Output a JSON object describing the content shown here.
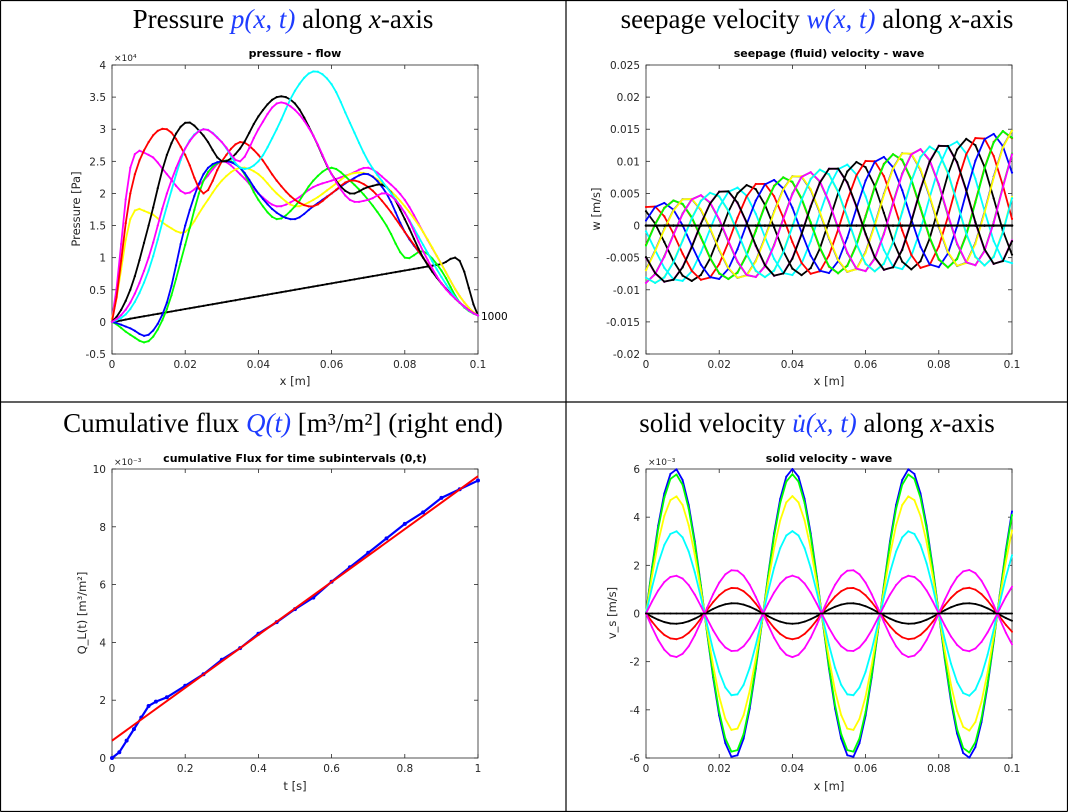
{
  "panels": [
    {
      "title_prefix": "Pressure ",
      "title_math": "p(x, t)",
      "title_suffix_a": " along ",
      "title_var": "x",
      "title_suffix_b": "-axis"
    },
    {
      "title_prefix": "seepage velocity ",
      "title_math": "w(x, t)",
      "title_suffix_a": " along ",
      "title_var": "x",
      "title_suffix_b": "-axis"
    },
    {
      "title_prefix": "Cumulative flux ",
      "title_math": "Q(t)",
      "title_suffix_a": " [m³/m²] (right end)",
      "title_var": "",
      "title_suffix_b": ""
    },
    {
      "title_prefix": "solid velocity ",
      "title_math": "u̇(x, t)",
      "title_suffix_a": " along ",
      "title_var": "x",
      "title_suffix_b": "-axis"
    }
  ],
  "chart_data": [
    {
      "type": "line",
      "title": "pressure - flow",
      "xlabel": "x [m]",
      "ylabel": "Pressure [Pa]",
      "exponent": "×10⁴",
      "xlim": [
        0,
        0.1
      ],
      "ylim": [
        -0.5,
        4
      ],
      "xticks": [
        "0",
        "0.02",
        "0.04",
        "0.06",
        "0.08",
        "0.1"
      ],
      "yticks": [
        "-0.5",
        "0",
        "0.5",
        "1",
        "1.5",
        "2",
        "2.5",
        "3",
        "3.5",
        "4"
      ],
      "annotation": "1000",
      "x": [
        0,
        0.005,
        0.01,
        0.015,
        0.02,
        0.025,
        0.03,
        0.035,
        0.04,
        0.045,
        0.05,
        0.055,
        0.06,
        0.065,
        0.07,
        0.075,
        0.08,
        0.085,
        0.09,
        0.095,
        0.1
      ],
      "series": [
        {
          "color": "#000000",
          "values": [
            0,
            0.05,
            0.1,
            0.15,
            0.2,
            0.25,
            0.3,
            0.35,
            0.4,
            0.45,
            0.5,
            0.55,
            0.6,
            0.65,
            0.7,
            0.75,
            0.8,
            0.85,
            0.9,
            0.95,
            0.1
          ]
        },
        {
          "color": "#ff00ff",
          "values": [
            0.05,
            2.4,
            2.6,
            2.3,
            2.0,
            2.2,
            2.5,
            2.3,
            2.0,
            1.8,
            1.9,
            2.1,
            2.2,
            2.3,
            2.4,
            2.2,
            1.9,
            1.4,
            0.9,
            0.4,
            0.1
          ]
        },
        {
          "color": "#ffff00",
          "values": [
            0.05,
            1.6,
            1.7,
            1.5,
            1.4,
            1.8,
            2.2,
            2.4,
            2.3,
            2.0,
            1.8,
            1.9,
            2.1,
            2.3,
            2.3,
            2.1,
            1.8,
            1.4,
            0.9,
            0.4,
            0.1
          ]
        },
        {
          "color": "#00ff00",
          "values": [
            0,
            -0.2,
            -0.3,
            0.2,
            1.2,
            2.2,
            2.5,
            2.4,
            1.9,
            1.6,
            1.8,
            2.2,
            2.4,
            2.2,
            1.9,
            1.5,
            1.0,
            1.1,
            0.8,
            0.3,
            0.1
          ]
        },
        {
          "color": "#0000ff",
          "values": [
            0,
            -0.1,
            -0.2,
            0.3,
            1.5,
            2.3,
            2.5,
            2.4,
            2.0,
            1.7,
            1.6,
            1.8,
            2.0,
            2.2,
            2.3,
            2.0,
            1.4,
            1.0,
            0.6,
            0.3,
            0.1
          ]
        },
        {
          "color": "#ff0000",
          "values": [
            0,
            2.0,
            2.8,
            3.0,
            2.6,
            2.0,
            2.5,
            2.8,
            2.6,
            2.2,
            1.9,
            1.8,
            2.0,
            2.2,
            2.1,
            1.8,
            1.4,
            1.0,
            0.6,
            0.3,
            0.1
          ]
        },
        {
          "color": "#000000",
          "values": [
            0,
            0.5,
            1.5,
            2.6,
            3.1,
            2.9,
            2.5,
            2.7,
            3.2,
            3.5,
            3.4,
            2.9,
            2.3,
            2.0,
            2.1,
            2.1,
            1.6,
            1.0,
            0.6,
            0.3,
            0.1
          ]
        },
        {
          "color": "#00ffff",
          "values": [
            0,
            0.2,
            0.8,
            1.8,
            2.7,
            3.0,
            2.8,
            2.4,
            2.5,
            3.0,
            3.6,
            3.9,
            3.7,
            3.1,
            2.5,
            2.1,
            1.7,
            1.2,
            0.7,
            0.3,
            0.1
          ]
        },
        {
          "color": "#ff00ff",
          "values": [
            0,
            0.3,
            1.0,
            2.0,
            2.7,
            3.0,
            2.8,
            2.5,
            3.0,
            3.4,
            3.3,
            2.9,
            2.3,
            1.9,
            1.9,
            2.0,
            1.7,
            1.1,
            0.6,
            0.3,
            0.1
          ]
        }
      ]
    },
    {
      "type": "line",
      "title": "seepage (fluid) velocity - wave",
      "xlabel": "x [m]",
      "ylabel": "w [m/s]",
      "xlim": [
        0,
        0.1
      ],
      "ylim": [
        -0.02,
        0.025
      ],
      "xticks": [
        "0",
        "0.02",
        "0.04",
        "0.06",
        "0.08",
        "0.1"
      ],
      "yticks": [
        "-0.02",
        "-0.015",
        "-0.01",
        "-0.005",
        "0",
        "0.005",
        "0.01",
        "0.015",
        "0.02",
        "0.025"
      ],
      "phases": [
        0,
        0.7,
        1.4,
        2.1,
        2.8,
        3.5,
        4.2,
        4.9,
        5.6,
        6.3,
        7.0,
        7.7,
        8.4,
        9.1
      ],
      "colors": [
        "#ff0000",
        "#0000ff",
        "#00ff00",
        "#ffff00",
        "#ff00ff",
        "#00ffff",
        "#000000"
      ],
      "baseline_color": "#000000",
      "amplitude_start": 0.012,
      "amplitude_end": 0.021,
      "offset_start": -0.003,
      "offset_end": 0.0045,
      "wavelength": 0.03
    },
    {
      "type": "line",
      "title": "cumulative Flux for time subintervals (0,t)",
      "xlabel": "t [s]",
      "ylabel": "Q_L(t) [m³/m²]",
      "exponent": "×10⁻³",
      "xlim": [
        0,
        1
      ],
      "ylim": [
        0,
        10
      ],
      "xticks": [
        "0",
        "0.2",
        "0.4",
        "0.6",
        "0.8",
        "1"
      ],
      "yticks": [
        "0",
        "2",
        "4",
        "6",
        "8",
        "10"
      ],
      "series": [
        {
          "name": "",
          "color": "#0000ff",
          "x": [
            0,
            0.02,
            0.04,
            0.06,
            0.08,
            0.1,
            0.12,
            0.15,
            0.2,
            0.25,
            0.3,
            0.35,
            0.4,
            0.45,
            0.5,
            0.55,
            0.6,
            0.65,
            0.7,
            0.75,
            0.8,
            0.85,
            0.9,
            0.95,
            1.0
          ],
          "values": [
            0,
            0.2,
            0.6,
            1.0,
            1.4,
            1.8,
            1.95,
            2.1,
            2.5,
            2.9,
            3.4,
            3.8,
            4.3,
            4.7,
            5.15,
            5.55,
            6.1,
            6.6,
            7.1,
            7.6,
            8.1,
            8.5,
            9.0,
            9.3,
            9.6
          ]
        },
        {
          "name": "",
          "color": "#ff0000",
          "x": [
            0,
            1
          ],
          "values": [
            0.6,
            9.75
          ]
        }
      ]
    },
    {
      "type": "line",
      "title": "solid velocity - wave",
      "xlabel": "x [m]",
      "ylabel": "v_s [m/s]",
      "exponent": "×10⁻³",
      "xlim": [
        0,
        0.1
      ],
      "ylim": [
        -6,
        6
      ],
      "xticks": [
        "0",
        "0.02",
        "0.04",
        "0.06",
        "0.08",
        "0.1"
      ],
      "yticks": [
        "-6",
        "-4",
        "-2",
        "0",
        "2",
        "4",
        "6"
      ],
      "wavelength": 0.032,
      "series": [
        {
          "color": "#0000ff",
          "amp": 6.0,
          "phase": 0.0
        },
        {
          "color": "#00ff00",
          "amp": 5.8,
          "phase": 0.15
        },
        {
          "color": "#ffff00",
          "amp": 5.0,
          "phase": 0.45
        },
        {
          "color": "#00ffff",
          "amp": 3.8,
          "phase": 0.9
        },
        {
          "color": "#ff00ff",
          "amp": 2.7,
          "phase": 1.9
        },
        {
          "color": "#000000",
          "amp": 5.4,
          "phase": 3.3
        },
        {
          "color": "#ff0000",
          "amp": 6.0,
          "phase": 3.5
        },
        {
          "color": "#ff00ff",
          "amp": 5.6,
          "phase": 3.8
        },
        {
          "color": "#000000",
          "amp": 0.0,
          "phase": 0
        }
      ]
    }
  ]
}
